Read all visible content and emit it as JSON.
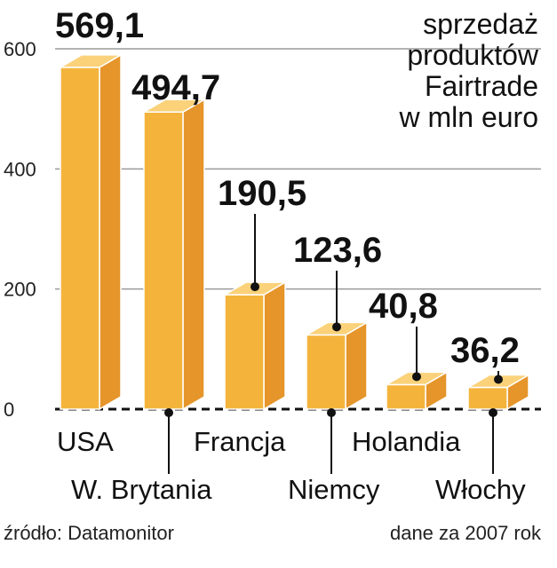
{
  "chart_data": {
    "type": "bar",
    "title_lines": [
      "sprzedaż",
      "produktów",
      "Fairtrade",
      "w mln euro"
    ],
    "categories": [
      "USA",
      "W. Brytania",
      "Francja",
      "Niemcy",
      "Holandia",
      "Włochy"
    ],
    "values": [
      569.1,
      494.7,
      190.5,
      123.6,
      40.8,
      36.2
    ],
    "value_labels": [
      "569,1",
      "494,7",
      "190,5",
      "123,6",
      "40,8",
      "36,2"
    ],
    "y_ticks": [
      0,
      200,
      400,
      600
    ],
    "ylim": [
      0,
      600
    ],
    "grid": true,
    "colors": {
      "front": "#F4B43C",
      "side": "#E5952A",
      "top": "#FBD27A",
      "edge": "#FFFFFF"
    }
  },
  "footer": {
    "source": "źródło: Datamonitor",
    "note": "dane za 2007 rok"
  }
}
